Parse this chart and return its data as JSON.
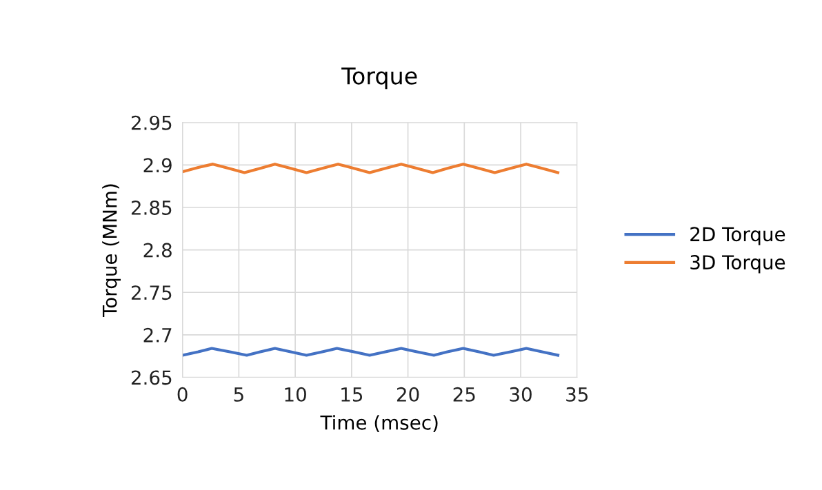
{
  "chart_data": {
    "type": "line",
    "title": "Torque",
    "xlabel": "Time (msec)",
    "ylabel": "Torque (MNm)",
    "xlim": [
      0,
      35
    ],
    "xticks": [
      0,
      5,
      10,
      15,
      20,
      25,
      30,
      35
    ],
    "ylim": [
      2.65,
      2.95
    ],
    "yticks": [
      2.65,
      2.7,
      2.75,
      2.8,
      2.85,
      2.9,
      2.95
    ],
    "grid": true,
    "legend": "right",
    "line_style": "solid",
    "marker": "none",
    "series": [
      {
        "name": "2D Torque",
        "color": "#4472c4",
        "x": [
          0,
          1.4,
          2.6,
          4.2,
          5.7,
          6.9,
          8.2,
          9.6,
          11.0,
          12.4,
          13.7,
          15.2,
          16.6,
          18.0,
          19.4,
          20.8,
          22.3,
          23.5,
          24.9,
          26.3,
          27.6,
          29.1,
          30.5,
          31.9,
          33.3
        ],
        "values": [
          2.676,
          2.68,
          2.684,
          2.68,
          2.676,
          2.68,
          2.684,
          2.68,
          2.676,
          2.68,
          2.684,
          2.68,
          2.676,
          2.68,
          2.684,
          2.68,
          2.676,
          2.68,
          2.684,
          2.68,
          2.676,
          2.68,
          2.684,
          2.68,
          2.676
        ]
      },
      {
        "name": "3D Torque",
        "color": "#ed7d31",
        "x": [
          0,
          1.4,
          2.7,
          4.1,
          5.5,
          6.9,
          8.2,
          9.6,
          11.0,
          12.4,
          13.8,
          15.2,
          16.6,
          18.0,
          19.4,
          20.8,
          22.2,
          23.5,
          24.9,
          26.3,
          27.7,
          29.1,
          30.5,
          31.9,
          33.3
        ],
        "values": [
          2.892,
          2.897,
          2.901,
          2.896,
          2.891,
          2.896,
          2.901,
          2.896,
          2.891,
          2.896,
          2.901,
          2.896,
          2.891,
          2.896,
          2.901,
          2.896,
          2.891,
          2.896,
          2.901,
          2.896,
          2.891,
          2.896,
          2.901,
          2.896,
          2.891
        ]
      }
    ]
  }
}
